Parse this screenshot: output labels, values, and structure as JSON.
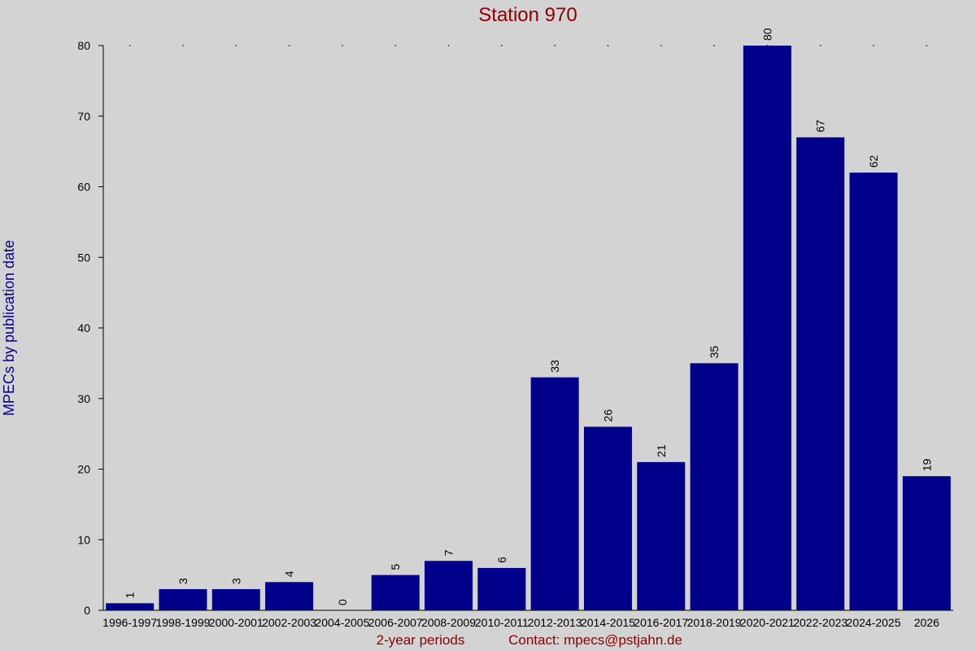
{
  "chart_data": {
    "type": "bar",
    "title": "Station 970",
    "x_label": "2-year periods",
    "annotation": "Contact: mpecs@pstjahn.de",
    "y_label": "MPECs by publication date",
    "categories": [
      "1996-1997",
      "1998-1999",
      "2000-2001",
      "2002-2003",
      "2004-2005",
      "2006-2007",
      "2008-2009",
      "2010-2011",
      "2012-2013",
      "2014-2015",
      "2016-2017",
      "2018-2019",
      "2020-2021",
      "2022-2023",
      "2024-2025",
      "2026"
    ],
    "values": [
      1,
      3,
      3,
      4,
      0,
      5,
      7,
      6,
      33,
      26,
      21,
      35,
      80,
      67,
      62,
      19
    ],
    "color": "#00008b",
    "ylim": [
      0,
      80
    ],
    "yticks": [
      0,
      10,
      20,
      30,
      40,
      50,
      60,
      70,
      80
    ]
  }
}
